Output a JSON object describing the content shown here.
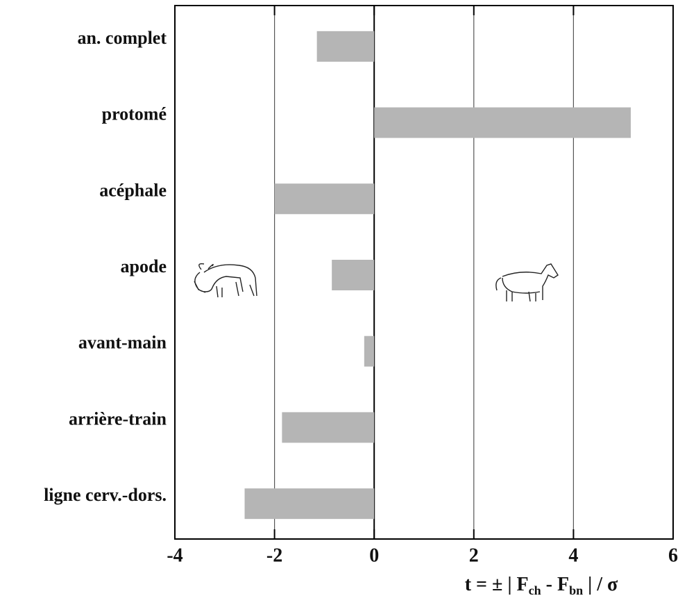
{
  "chart_data": {
    "type": "bar",
    "orientation": "horizontal",
    "categories": [
      "an. complet",
      "protomé",
      "acéphale",
      "apode",
      "avant-main",
      "arrière-train",
      "ligne cerv.-dors."
    ],
    "values": [
      -1.15,
      5.15,
      -2.0,
      -0.85,
      -0.2,
      -1.85,
      -2.6
    ],
    "color": "#b5b5b5",
    "xlim": [
      -4,
      6
    ],
    "xticks": [
      -4,
      -2,
      0,
      2,
      4,
      6
    ],
    "grid": true,
    "xlabel_parts": [
      "t = ± | F",
      "ch",
      " - F",
      "bn",
      " | / σ"
    ]
  }
}
